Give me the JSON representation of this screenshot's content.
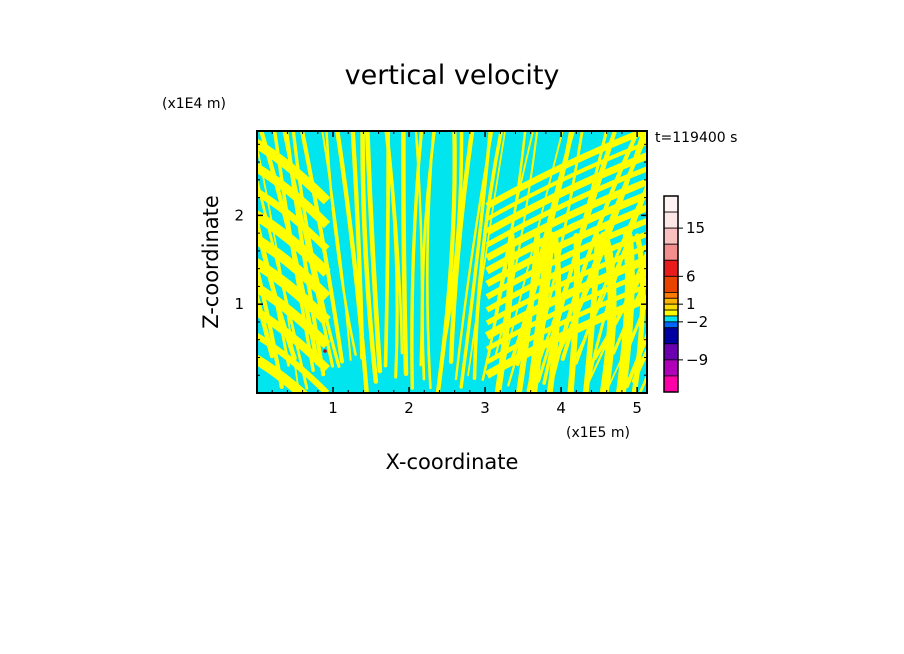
{
  "chart_data": {
    "type": "heatmap",
    "title": "vertical velocity",
    "xlabel": "X-coordinate",
    "ylabel": "Z-coordinate",
    "x_unit": "(x1E5 m)",
    "y_unit": "(x1E4 m)",
    "time_label": "t=119400 s",
    "xlim": [
      0,
      5.13
    ],
    "ylim": [
      0,
      2.95
    ],
    "x_ticks": [
      1,
      2,
      3,
      4,
      5
    ],
    "y_ticks": [
      1,
      2
    ],
    "field_colors": {
      "positive": "#ffff00",
      "negative": "#00e5ee",
      "accent": "#c00000"
    },
    "colorbar": {
      "levels": [
        {
          "value": 21,
          "color": "#fff4f4"
        },
        {
          "value": 18,
          "color": "#fde6e6"
        },
        {
          "value": 15,
          "color": "#f9c0c0"
        },
        {
          "value": 12,
          "color": "#f28e8e"
        },
        {
          "value": 9,
          "color": "#e81c1c"
        },
        {
          "value": 6,
          "color": "#e84400"
        },
        {
          "value": 3,
          "color": "#ff7a00"
        },
        {
          "value": 2,
          "color": "#ffb400"
        },
        {
          "value": 1,
          "color": "#ffdc00"
        },
        {
          "value": 0,
          "color": "#ffff00"
        },
        {
          "value": -1,
          "color": "#00e5ee"
        },
        {
          "value": -2,
          "color": "#0066ff"
        },
        {
          "value": -3,
          "color": "#0000a0"
        },
        {
          "value": -6,
          "color": "#6a00b0"
        },
        {
          "value": -9,
          "color": "#b000b8"
        },
        {
          "value": -12,
          "color": "#ff00a8"
        }
      ],
      "labels": [
        "15",
        "6",
        "1",
        "−2",
        "−9"
      ]
    }
  }
}
